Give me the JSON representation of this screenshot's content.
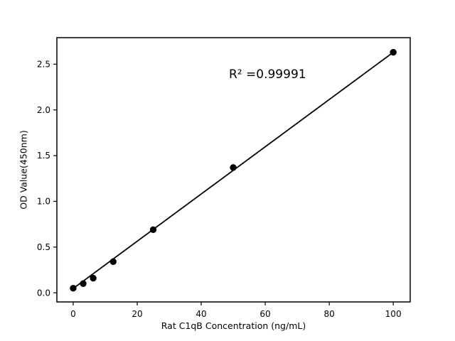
{
  "figure": {
    "background_color": "#ffffff",
    "foreground_color": "#000000"
  },
  "chart_data": {
    "type": "scatter",
    "title": "",
    "xlabel": "Rat C1qB Concentration (ng/mL)",
    "ylabel": "OD Value(450nm)",
    "x": [
      0,
      3.125,
      6.25,
      12.5,
      25,
      50,
      100
    ],
    "y": [
      0.05,
      0.1,
      0.16,
      0.34,
      0.69,
      1.37,
      2.63
    ],
    "fit_line": {
      "x1": 0,
      "y1": 0.047,
      "x2": 100,
      "y2": 2.63
    },
    "r_squared_label": "R² =0.99991",
    "annotation_pos": {
      "x": 49,
      "y": 2.35
    },
    "xtick_values": [
      0,
      20,
      40,
      60,
      80,
      100
    ],
    "xtick_labels": [
      "0",
      "20",
      "40",
      "60",
      "80",
      "100"
    ],
    "ytick_values": [
      0.0,
      0.5,
      1.0,
      1.5,
      2.0,
      2.5
    ],
    "ytick_labels": [
      "0.0",
      "0.5",
      "1.0",
      "1.5",
      "2.0",
      "2.5"
    ],
    "xlim": [
      -5.1,
      105.3
    ],
    "ylim": [
      -0.1,
      2.79
    ],
    "grid": false,
    "legend": "none",
    "marker_color": "#000000",
    "line_color": "#000000"
  }
}
